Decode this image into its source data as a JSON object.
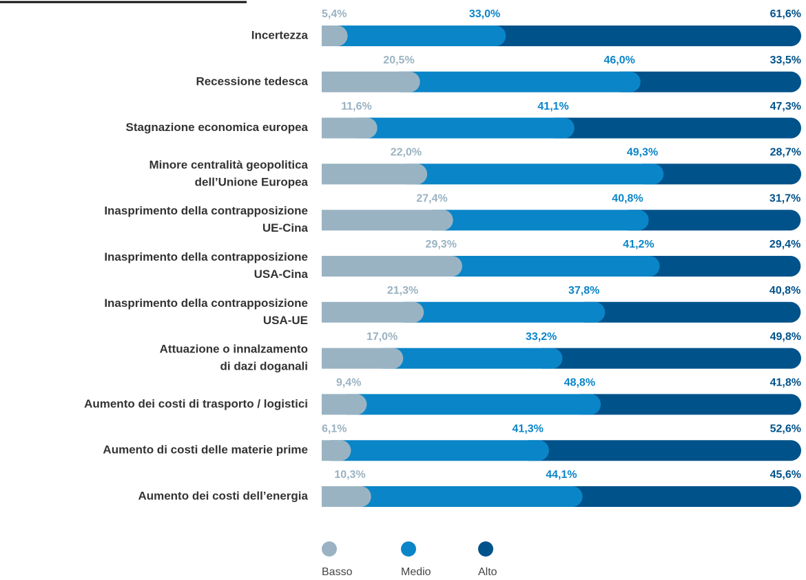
{
  "chart_data": {
    "type": "stacked-bar-horizontal",
    "categories": [
      "Incertezza",
      "Recessione tedesca",
      "Stagnazione economica europea",
      "Minore centralità geopolitica\ndell’Unione Europea",
      "Inasprimento della contrapposizione\nUE-Cina",
      "Inasprimento della contrapposizione\nUSA-Cina",
      "Inasprimento della contrapposizione\nUSA-UE",
      "Attuazione o innalzamento\ndi dazi doganali",
      "Aumento dei costi di trasporto / logistici",
      "Aumento di costi delle materie prime",
      "Aumento dei costi dell’energia"
    ],
    "series": [
      {
        "name": "Basso",
        "color": "#9ab3c2",
        "values": [
          5.4,
          20.5,
          11.6,
          22.0,
          27.4,
          29.3,
          21.3,
          17.0,
          9.4,
          6.1,
          10.3
        ],
        "value_labels": [
          "5,4%",
          "20,5%",
          "11,6%",
          "22,0%",
          "27,4%",
          "29,3%",
          "21,3%",
          "17,0%",
          "9,4%",
          "6,1%",
          "10,3%"
        ]
      },
      {
        "name": "Medio",
        "color": "#0a85c8",
        "values": [
          33.0,
          46.0,
          41.1,
          49.3,
          40.8,
          41.2,
          37.8,
          33.2,
          48.8,
          41.3,
          44.1
        ],
        "value_labels": [
          "33,0%",
          "46,0%",
          "41,1%",
          "49,3%",
          "40,8%",
          "41,2%",
          "37,8%",
          "33,2%",
          "48,8%",
          "41,3%",
          "44,1%"
        ]
      },
      {
        "name": "Alto",
        "color": "#00528a",
        "values": [
          61.6,
          33.5,
          47.3,
          28.7,
          31.7,
          29.4,
          40.8,
          49.8,
          41.8,
          52.6,
          45.6
        ],
        "value_labels": [
          "61,6%",
          "33,5%",
          "47,3%",
          "28,7%",
          "31,7%",
          "29,4%",
          "40,8%",
          "49,8%",
          "41,8%",
          "52,6%",
          "45,6%"
        ]
      }
    ],
    "xlim": [
      0,
      100
    ],
    "legend": "bottom"
  }
}
